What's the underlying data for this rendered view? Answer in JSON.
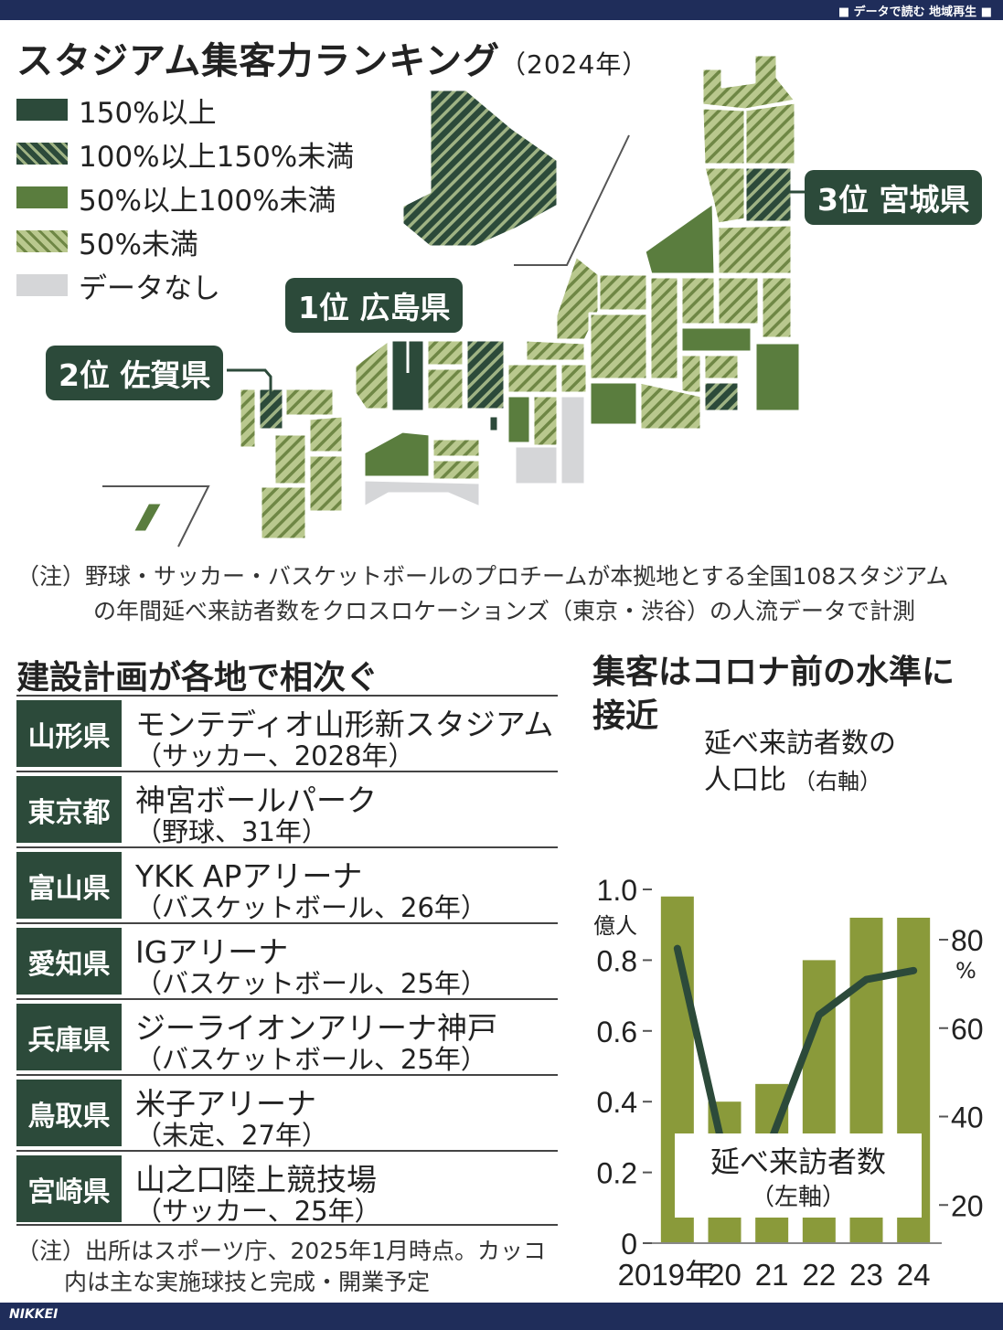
{
  "header": {
    "series_label": "■ データで読む 地域再生 ■"
  },
  "title": {
    "main": "スタジアム集客力ランキング",
    "year": "（2024年）"
  },
  "legend": [
    {
      "label": "150%以上",
      "pattern": "solid-dark",
      "color": "#2c4a3a"
    },
    {
      "label": "100%以上150%未満",
      "pattern": "hatch-dark",
      "color": "#2c4a3a"
    },
    {
      "label": "50%以上100%未満",
      "pattern": "solid-mid",
      "color": "#5a7d3e"
    },
    {
      "label": "50%未満",
      "pattern": "hatch-light",
      "color": "#8aa05a"
    },
    {
      "label": "データなし",
      "pattern": "gray",
      "color": "#d5d6d8"
    }
  ],
  "map": {
    "rank1": "1位 広島県",
    "rank2": "2位 佐賀県",
    "rank3": "3位 宮城県"
  },
  "note_map": {
    "line1": "（注）野球・サッカー・バスケットボールのプロチームが本拠地とする全国108スタジアム",
    "line2": "の年間延べ来訪者数をクロスロケーションズ（東京・渋谷）の人流データで計測"
  },
  "plans": {
    "title": "建設計画が各地で相次ぐ",
    "rows": [
      {
        "pref": "山形県",
        "name": "モンテディオ山形新スタジアム",
        "detail": "（サッカー、2028年）"
      },
      {
        "pref": "東京都",
        "name": "神宮ボールパーク",
        "detail": "（野球、31年）"
      },
      {
        "pref": "富山県",
        "name": "YKK APアリーナ",
        "detail": "（バスケットボール、26年）"
      },
      {
        "pref": "愛知県",
        "name": "IGアリーナ",
        "detail": "（バスケットボール、25年）"
      },
      {
        "pref": "兵庫県",
        "name": "ジーライオンアリーナ神戸",
        "detail": "（バスケットボール、25年）"
      },
      {
        "pref": "鳥取県",
        "name": "米子アリーナ",
        "detail": "（未定、27年）"
      },
      {
        "pref": "宮崎県",
        "name": "山之口陸上競技場",
        "detail": "（サッカー、25年）"
      }
    ],
    "note_line1": "（注）出所はスポーツ庁、2025年1月時点。カッコ",
    "note_line2": "内は主な実施球技と完成・開業予定"
  },
  "chart_title_line1": "集客はコロナ前の水準に",
  "chart_title_line2": "接近",
  "chart_data": {
    "type": "bar+line",
    "categories": [
      "2019年",
      "20",
      "21",
      "22",
      "23",
      "24"
    ],
    "series": [
      {
        "name": "延べ来訪者数",
        "axis_note": "（左軸）",
        "type": "bar",
        "unit": "億人",
        "values": [
          0.98,
          0.4,
          0.45,
          0.8,
          0.92,
          0.92
        ],
        "color": "#8a9a3a"
      },
      {
        "name": "延べ来訪者数の",
        "name_line2": "人口比",
        "axis_note": "（右軸）",
        "type": "line",
        "unit": "%",
        "values": [
          78,
          31,
          35,
          63,
          71,
          73
        ],
        "color": "#2c4a3a"
      }
    ],
    "left_axis": {
      "ticks": [
        "1.0",
        "0.8",
        "0.6",
        "0.4",
        "0.2",
        "0"
      ],
      "unit": "億人",
      "ylim": [
        0,
        1.0
      ]
    },
    "right_axis": {
      "ticks": [
        "80",
        "60",
        "40",
        "20"
      ],
      "unit": "%",
      "ylim": [
        0,
        80
      ]
    }
  },
  "footer": {
    "logo": "NIKKEI"
  }
}
